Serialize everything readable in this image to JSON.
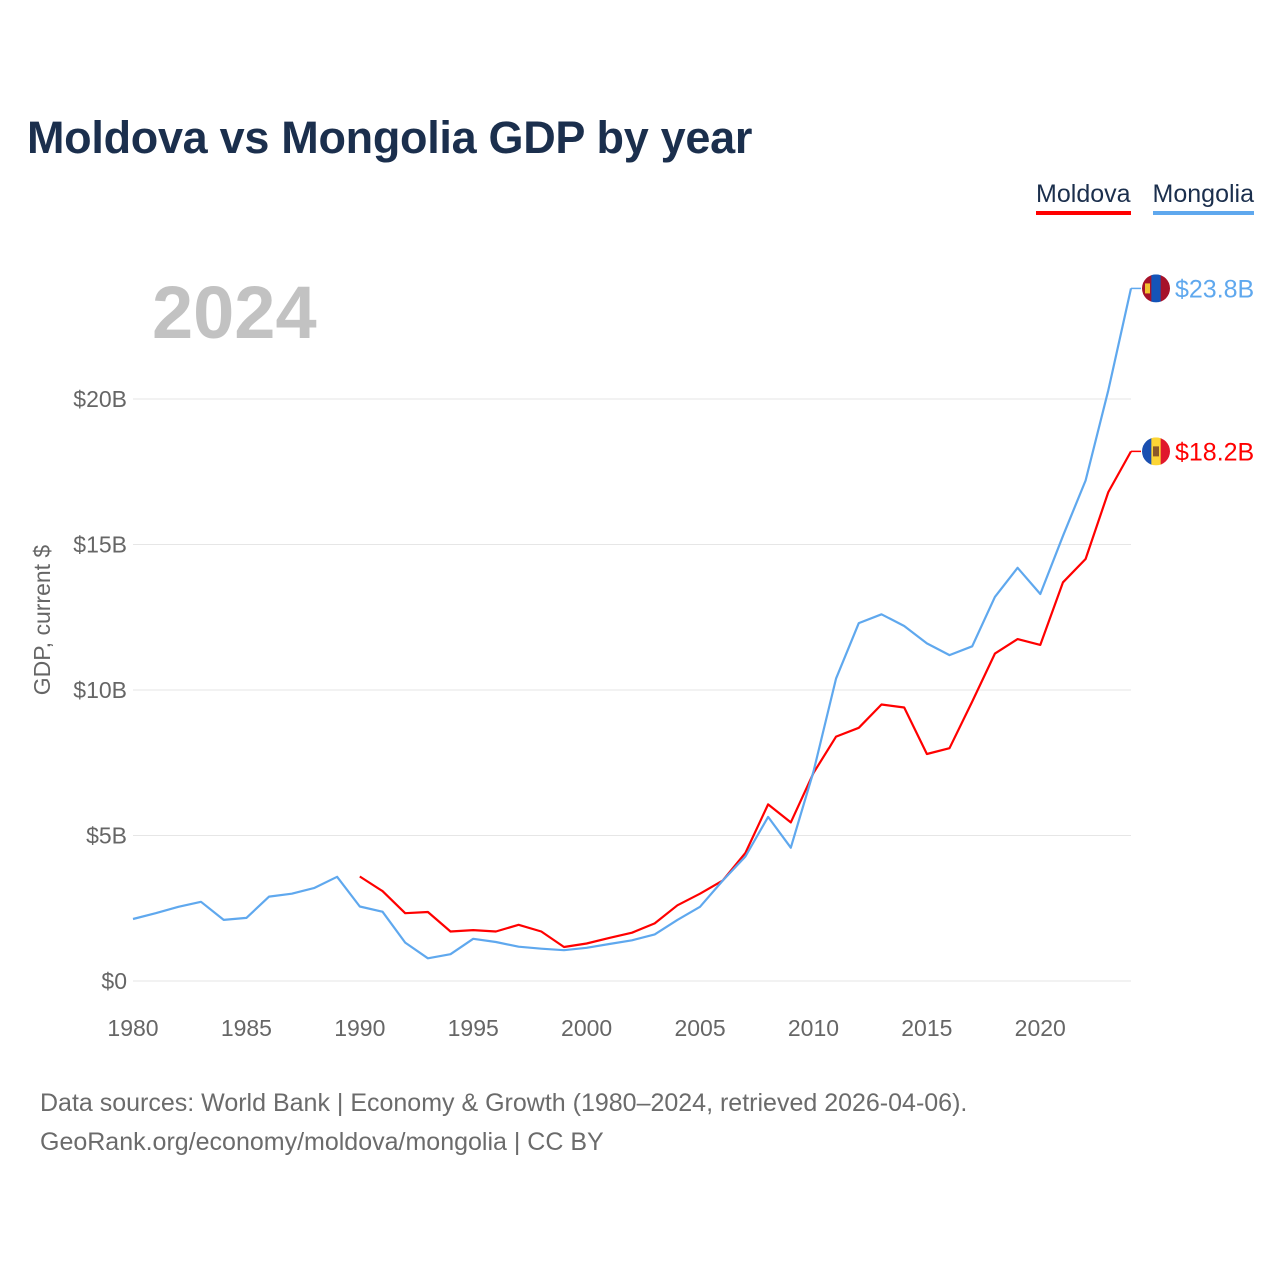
{
  "title": "Moldova vs Mongolia GDP by year",
  "legend": [
    {
      "name": "Moldova",
      "color": "#ff0000"
    },
    {
      "name": "Mongolia",
      "color": "#5fa8ee"
    }
  ],
  "year_overlay": "2024",
  "source_lines": [
    "Data sources: World Bank | Economy & Growth (1980–2024, retrieved 2026-04-06).",
    "GeoRank.org/economy/moldova/mongolia | CC BY"
  ],
  "chart_data": {
    "type": "line",
    "title": "Moldova vs Mongolia GDP by year",
    "xlabel": "",
    "ylabel": "GDP, current $",
    "xlim": [
      1980,
      2024
    ],
    "ylim": [
      0,
      24
    ],
    "grid": true,
    "legend_position": "top-right",
    "x_ticks": [
      1980,
      1985,
      1990,
      1995,
      2000,
      2005,
      2010,
      2015,
      2020
    ],
    "x_tick_labels": [
      "1980",
      "1985",
      "1990",
      "1995",
      "2000",
      "2005",
      "2010",
      "2015",
      "2020"
    ],
    "y_ticks": [
      0,
      5,
      10,
      15,
      20
    ],
    "y_tick_labels": [
      "$0",
      "$5B",
      "$10B",
      "$15B",
      "$20B"
    ],
    "series": [
      {
        "name": "Moldova",
        "color": "#ff0000",
        "end_label": "$18.2B",
        "flag": "moldova-flag",
        "x": [
          1990,
          1991,
          1992,
          1993,
          1994,
          1995,
          1996,
          1997,
          1998,
          1999,
          2000,
          2001,
          2002,
          2003,
          2004,
          2005,
          2006,
          2007,
          2008,
          2009,
          2010,
          2011,
          2012,
          2013,
          2014,
          2015,
          2016,
          2017,
          2018,
          2019,
          2020,
          2021,
          2022,
          2023,
          2024
        ],
        "values": [
          3.59,
          3.09,
          2.33,
          2.37,
          1.7,
          1.75,
          1.7,
          1.93,
          1.7,
          1.17,
          1.29,
          1.48,
          1.66,
          1.98,
          2.6,
          3.0,
          3.45,
          4.4,
          6.07,
          5.45,
          7.15,
          8.4,
          8.7,
          9.5,
          9.4,
          7.8,
          8.0,
          9.6,
          11.25,
          11.75,
          11.55,
          13.7,
          14.5,
          16.8,
          18.2
        ]
      },
      {
        "name": "Mongolia",
        "color": "#5fa8ee",
        "end_label": "$23.8B",
        "flag": "mongolia-flag",
        "x": [
          1980,
          1981,
          1982,
          1983,
          1984,
          1985,
          1986,
          1987,
          1988,
          1989,
          1990,
          1991,
          1992,
          1993,
          1994,
          1995,
          1996,
          1997,
          1998,
          1999,
          2000,
          2001,
          2002,
          2003,
          2004,
          2005,
          2006,
          2007,
          2008,
          2009,
          2010,
          2011,
          2012,
          2013,
          2014,
          2015,
          2016,
          2017,
          2018,
          2019,
          2020,
          2021,
          2022,
          2023,
          2024
        ],
        "values": [
          2.13,
          2.33,
          2.55,
          2.72,
          2.1,
          2.17,
          2.9,
          3.0,
          3.2,
          3.58,
          2.56,
          2.38,
          1.32,
          0.78,
          0.92,
          1.45,
          1.34,
          1.18,
          1.11,
          1.06,
          1.14,
          1.27,
          1.4,
          1.6,
          2.1,
          2.55,
          3.45,
          4.28,
          5.64,
          4.58,
          7.2,
          10.4,
          12.3,
          12.6,
          12.2,
          11.6,
          11.2,
          11.5,
          13.2,
          14.2,
          13.3,
          15.3,
          17.2,
          20.3,
          23.8
        ]
      }
    ]
  }
}
